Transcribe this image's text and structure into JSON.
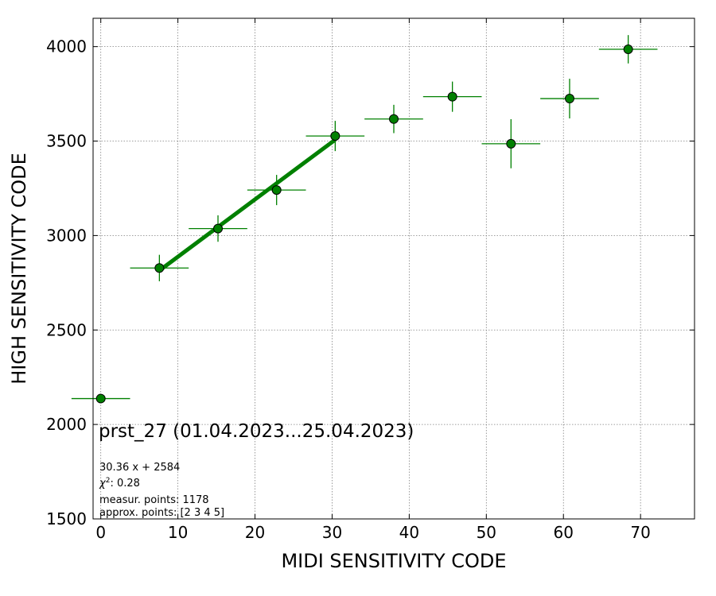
{
  "chart_data": {
    "type": "scatter",
    "xlabel": "MIDI SENSITIVITY CODE",
    "ylabel": "HIGH SENSITIVITY CODE",
    "xlim": [
      -1,
      77
    ],
    "ylim": [
      1500,
      4150
    ],
    "x_ticks": [
      0,
      10,
      20,
      30,
      40,
      50,
      60,
      70
    ],
    "y_ticks": [
      1500,
      2000,
      2500,
      3000,
      3500,
      4000
    ],
    "grid": true,
    "colors": {
      "points": "#008000",
      "point_edge": "#000000",
      "fit_line": "#008000",
      "grid": "#808080"
    },
    "series": [
      {
        "points": [
          {
            "x": 0.0,
            "y": 2137,
            "xerr": 3.8,
            "yerr": 0
          },
          {
            "x": 7.6,
            "y": 2828,
            "xerr": 3.8,
            "yerr": 70
          },
          {
            "x": 15.2,
            "y": 3037,
            "xerr": 3.8,
            "yerr": 70
          },
          {
            "x": 22.8,
            "y": 3241,
            "xerr": 3.8,
            "yerr": 80
          },
          {
            "x": 30.4,
            "y": 3527,
            "xerr": 3.8,
            "yerr": 80
          },
          {
            "x": 38.0,
            "y": 3617,
            "xerr": 3.8,
            "yerr": 75
          },
          {
            "x": 45.6,
            "y": 3735,
            "xerr": 3.8,
            "yerr": 80
          },
          {
            "x": 53.2,
            "y": 3486,
            "xerr": 3.8,
            "yerr": 130
          },
          {
            "x": 60.8,
            "y": 3725,
            "xerr": 3.8,
            "yerr": 105
          },
          {
            "x": 68.4,
            "y": 3986,
            "xerr": 3.8,
            "yerr": 75
          }
        ]
      }
    ],
    "fit": {
      "slope": 30.36,
      "intercept": 2584,
      "x_range": [
        7.6,
        30.4
      ]
    }
  },
  "annotations": {
    "title_line": "prst_27 (01.04.2023...25.04.2023)",
    "fit_eq": "30.36 x + 2584",
    "chi2_symbol": "χ",
    "chi2_sup": "2",
    "chi2_value": ": 0.28",
    "measur_points": "measur. points: 1178",
    "approx_points": "approx. points: [2 3 4 5]"
  }
}
